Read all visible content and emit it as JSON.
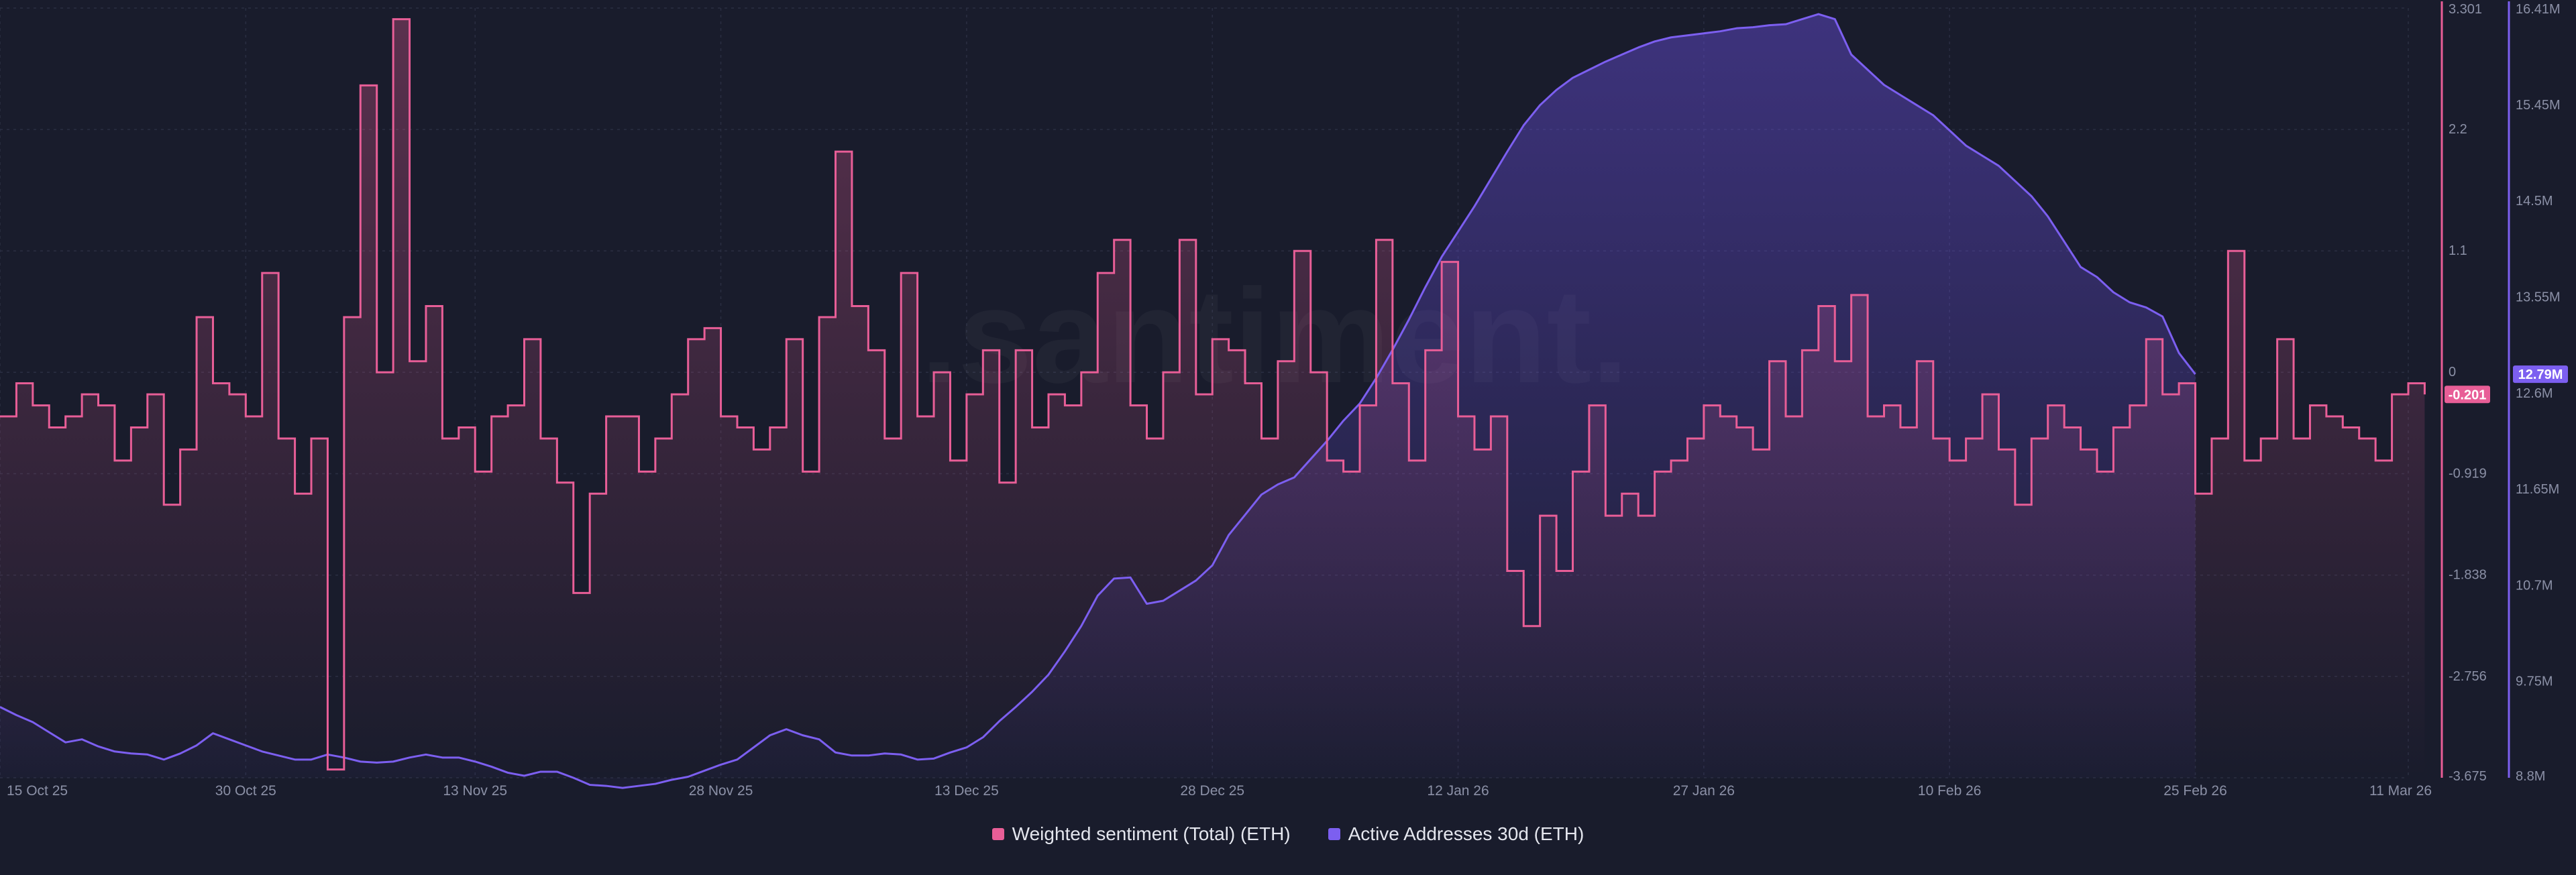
{
  "watermark": ".santiment.",
  "legend": {
    "sentiment": "Weighted sentiment (Total) (ETH)",
    "addresses": "Active Addresses 30d (ETH)"
  },
  "colors": {
    "background": "#191c2c",
    "sentiment": "#e85e97",
    "addresses": "#7c5ff0",
    "grid": "#2a2e42",
    "tick": "#8b90a6"
  },
  "chart_data": {
    "type": "line",
    "x_tick_labels": [
      "15 Oct 25",
      "30 Oct 25",
      "13 Nov 25",
      "28 Nov 25",
      "13 Dec 25",
      "28 Dec 25",
      "12 Jan 26",
      "27 Jan 26",
      "10 Feb 26",
      "25 Feb 26",
      "11 Mar 26"
    ],
    "x_tick_days": [
      0,
      15,
      29,
      44,
      59,
      74,
      89,
      104,
      119,
      134,
      147
    ],
    "x_range": [
      0,
      147
    ],
    "series": [
      {
        "name": "Weighted sentiment (Total) (ETH)",
        "axis": "left-inner",
        "ylim": [
          -3.675,
          3.301
        ],
        "y_ticks": [
          "3.301",
          "2.2",
          "1.1",
          "0",
          "-0.919",
          "-1.838",
          "-2.756",
          "-3.675"
        ],
        "y_tick_values": [
          3.301,
          2.2,
          1.1,
          0,
          -0.919,
          -1.838,
          -2.756,
          -3.675
        ],
        "last_value": "-0.201",
        "values": [
          -0.4,
          -0.1,
          -0.3,
          -0.5,
          -0.4,
          -0.2,
          -0.3,
          -0.8,
          -0.5,
          -0.2,
          -1.2,
          -0.7,
          0.5,
          -0.1,
          -0.2,
          -0.4,
          0.9,
          -0.6,
          -1.1,
          -0.6,
          -3.6,
          0.5,
          2.6,
          0.0,
          3.2,
          0.1,
          0.6,
          -0.6,
          -0.5,
          -0.9,
          -0.4,
          -0.3,
          0.3,
          -0.6,
          -1.0,
          -2.0,
          -1.1,
          -0.4,
          -0.4,
          -0.9,
          -0.6,
          -0.2,
          0.3,
          0.4,
          -0.4,
          -0.5,
          -0.7,
          -0.5,
          0.3,
          -0.9,
          0.5,
          2.0,
          0.6,
          0.2,
          -0.6,
          0.9,
          -0.4,
          0.0,
          -0.8,
          -0.2,
          0.2,
          -1.0,
          0.2,
          -0.5,
          -0.2,
          -0.3,
          0.0,
          0.9,
          1.2,
          -0.3,
          -0.6,
          0.0,
          1.2,
          -0.2,
          0.3,
          0.2,
          -0.1,
          -0.6,
          0.1,
          1.1,
          0.0,
          -0.8,
          -0.9,
          -0.3,
          1.2,
          -0.1,
          -0.8,
          0.2,
          1.0,
          -0.4,
          -0.7,
          -0.4,
          -1.8,
          -2.3,
          -1.3,
          -1.8,
          -0.9,
          -0.3,
          -1.3,
          -1.1,
          -1.3,
          -0.9,
          -0.8,
          -0.6,
          -0.3,
          -0.4,
          -0.5,
          -0.7,
          0.1,
          -0.4,
          0.2,
          0.6,
          0.1,
          0.7,
          -0.4,
          -0.3,
          -0.5,
          0.1,
          -0.6,
          -0.8,
          -0.6,
          -0.2,
          -0.7,
          -1.2,
          -0.6,
          -0.3,
          -0.5,
          -0.7,
          -0.9,
          -0.5,
          -0.3,
          0.3,
          -0.2,
          -0.1,
          -1.1,
          -0.6,
          1.1,
          -0.8,
          -0.6,
          0.3,
          -0.6,
          -0.3,
          -0.4,
          -0.5,
          -0.6,
          -0.8,
          -0.2,
          -0.1,
          -0.201
        ]
      },
      {
        "name": "Active Addresses 30d (ETH)",
        "axis": "right",
        "ylim": [
          8.8,
          16.41
        ],
        "unit": "M",
        "y_ticks": [
          "16.41M",
          "15.45M",
          "14.5M",
          "13.55M",
          "12.6M",
          "11.65M",
          "10.7M",
          "9.75M",
          "8.8M"
        ],
        "y_tick_values": [
          16.41,
          15.45,
          14.5,
          13.55,
          12.6,
          11.65,
          10.7,
          9.75,
          8.8
        ],
        "last_value": "12.79M",
        "values": [
          9.5,
          9.42,
          9.35,
          9.25,
          9.15,
          9.18,
          9.11,
          9.06,
          9.04,
          9.03,
          8.98,
          9.04,
          9.12,
          9.24,
          9.18,
          9.12,
          9.06,
          9.02,
          8.98,
          8.98,
          9.03,
          9.0,
          8.96,
          8.95,
          8.96,
          9.0,
          9.03,
          9.0,
          9.0,
          8.96,
          8.91,
          8.85,
          8.82,
          8.86,
          8.86,
          8.8,
          8.73,
          8.72,
          8.7,
          8.72,
          8.74,
          8.78,
          8.81,
          8.87,
          8.93,
          8.98,
          9.1,
          9.22,
          9.28,
          9.22,
          9.18,
          9.05,
          9.02,
          9.02,
          9.04,
          9.03,
          8.98,
          8.99,
          9.05,
          9.1,
          9.2,
          9.36,
          9.5,
          9.65,
          9.82,
          10.05,
          10.3,
          10.6,
          10.77,
          10.78,
          10.52,
          10.55,
          10.65,
          10.75,
          10.9,
          11.2,
          11.4,
          11.6,
          11.7,
          11.77,
          11.95,
          12.13,
          12.33,
          12.5,
          12.75,
          13.03,
          13.33,
          13.65,
          13.95,
          14.2,
          14.45,
          14.72,
          14.99,
          15.25,
          15.45,
          15.6,
          15.72,
          15.8,
          15.88,
          15.95,
          16.02,
          16.08,
          16.12,
          16.14,
          16.16,
          16.18,
          16.21,
          16.22,
          16.24,
          16.25,
          16.3,
          16.35,
          16.3,
          15.95,
          15.8,
          15.65,
          15.55,
          15.45,
          15.35,
          15.2,
          15.05,
          14.95,
          14.85,
          14.7,
          14.55,
          14.35,
          14.1,
          13.85,
          13.75,
          13.6,
          13.5,
          13.45,
          13.36,
          13.0,
          12.79
        ]
      }
    ]
  }
}
